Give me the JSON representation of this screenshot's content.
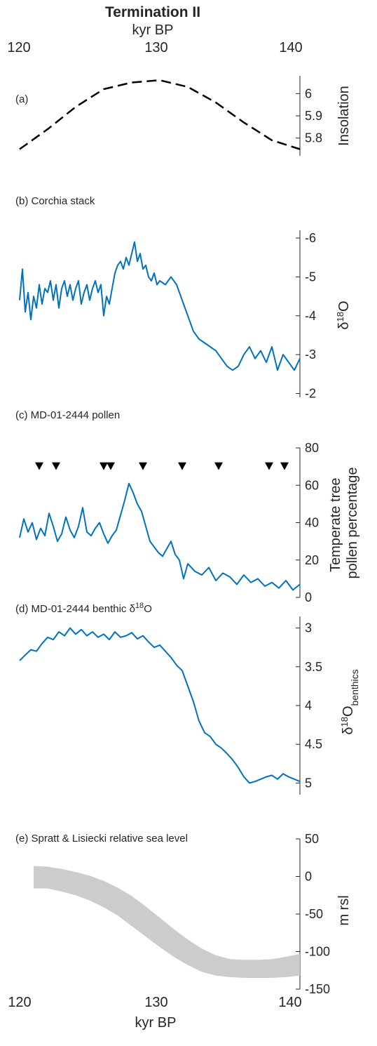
{
  "figure": {
    "title": "Termination II",
    "top_axis": {
      "label": "kyr BP",
      "ticks": [
        "120",
        "130",
        "140"
      ]
    },
    "bottom_axis": {
      "label": "kyr BP",
      "ticks": [
        "120",
        "130",
        "140"
      ]
    }
  },
  "colors": {
    "line": "#0072BD",
    "band": "#cccccc",
    "text": "#262626",
    "marker": "#000000"
  },
  "chart_data": [
    {
      "id": "a",
      "type": "line",
      "panel_label": "(a)",
      "ylabel": "Insolation",
      "line_style": "dashed",
      "y_ticks": [
        "6",
        "5.9",
        "5.8"
      ],
      "xlim": [
        120,
        140
      ],
      "ylim": [
        5.72,
        6.08
      ],
      "x": [
        120,
        122,
        124,
        126,
        128,
        130,
        132,
        134,
        136,
        138,
        140
      ],
      "y": [
        5.75,
        5.84,
        5.94,
        6.02,
        6.05,
        6.06,
        6.03,
        5.96,
        5.87,
        5.79,
        5.75
      ]
    },
    {
      "id": "b",
      "type": "line",
      "panel_label": "(b) Corchia stack",
      "ylabel": "δ18O",
      "ylabel_parts": {
        "main": "δ",
        "sup": "18",
        "rest": "O"
      },
      "y_reversed": true,
      "y_ticks": [
        "-6",
        "-5",
        "-4",
        "-3",
        "-2"
      ],
      "xlim": [
        120,
        140
      ],
      "ylim": [
        -6.2,
        -1.9
      ],
      "x": [
        120,
        120.2,
        120.4,
        120.6,
        120.8,
        121,
        121.2,
        121.4,
        121.6,
        121.8,
        122,
        122.2,
        122.4,
        122.6,
        122.8,
        123,
        123.2,
        123.4,
        123.6,
        123.8,
        124,
        124.2,
        124.4,
        124.6,
        124.8,
        125,
        125.2,
        125.4,
        125.6,
        125.8,
        126,
        126.2,
        126.4,
        126.6,
        126.8,
        127,
        127.2,
        127.4,
        127.6,
        127.8,
        128,
        128.2,
        128.4,
        128.6,
        128.8,
        129,
        129.2,
        129.4,
        129.6,
        129.8,
        130,
        130.4,
        130.8,
        131.2,
        131.6,
        132,
        132.4,
        132.8,
        133.2,
        133.6,
        134,
        134.4,
        134.8,
        135.2,
        135.6,
        136,
        136.4,
        136.8,
        137.2,
        137.6,
        138,
        138.4,
        138.8,
        139.2,
        139.6,
        140
      ],
      "y": [
        -4.4,
        -5.2,
        -4.1,
        -4.6,
        -3.9,
        -4.5,
        -4.2,
        -4.8,
        -4.3,
        -4.7,
        -4.6,
        -4.9,
        -4.4,
        -4.8,
        -4.2,
        -4.7,
        -4.9,
        -4.5,
        -4.8,
        -4.4,
        -4.7,
        -4.9,
        -4.3,
        -4.6,
        -4.8,
        -4.4,
        -4.7,
        -4.9,
        -4.6,
        -4.8,
        -4.0,
        -4.5,
        -4.3,
        -4.7,
        -5.1,
        -5.3,
        -5.4,
        -5.2,
        -5.5,
        -5.3,
        -5.6,
        -5.9,
        -5.4,
        -5.6,
        -5.2,
        -5.3,
        -5.0,
        -4.9,
        -5.1,
        -4.8,
        -4.9,
        -4.8,
        -5.0,
        -4.8,
        -4.4,
        -4.0,
        -3.6,
        -3.4,
        -3.3,
        -3.2,
        -3.1,
        -2.9,
        -2.7,
        -2.6,
        -2.7,
        -3.0,
        -3.2,
        -2.9,
        -3.1,
        -2.8,
        -3.2,
        -2.6,
        -3.0,
        -2.8,
        -2.6,
        -2.9
      ]
    },
    {
      "id": "c",
      "type": "line",
      "panel_label": "(c) MD-01-2444 pollen",
      "ylabel_lines": [
        "Temperate tree",
        "pollen percentage"
      ],
      "y_ticks": [
        "80",
        "60",
        "40",
        "20",
        "0"
      ],
      "xlim": [
        120,
        140
      ],
      "ylim": [
        0,
        80
      ],
      "x": [
        120,
        120.3,
        120.6,
        120.9,
        121.2,
        121.5,
        121.8,
        122.1,
        122.4,
        122.7,
        123,
        123.3,
        123.6,
        123.9,
        124.2,
        124.5,
        124.8,
        125.1,
        125.4,
        125.7,
        126,
        126.3,
        126.6,
        126.9,
        127.2,
        127.5,
        127.8,
        128.1,
        128.4,
        128.7,
        129,
        129.3,
        129.6,
        129.9,
        130.2,
        130.5,
        130.8,
        131.1,
        131.4,
        131.7,
        132,
        132.5,
        133,
        133.5,
        134,
        134.5,
        135,
        135.5,
        136,
        136.5,
        137,
        137.5,
        138,
        138.5,
        139,
        139.5,
        140
      ],
      "y": [
        32,
        42,
        35,
        40,
        31,
        37,
        33,
        45,
        38,
        30,
        34,
        43,
        36,
        32,
        38,
        48,
        35,
        33,
        37,
        40,
        34,
        29,
        33,
        36,
        44,
        52,
        61,
        56,
        50,
        46,
        38,
        30,
        27,
        24,
        22,
        26,
        30,
        23,
        20,
        10,
        18,
        14,
        12,
        16,
        9,
        13,
        11,
        7,
        12,
        8,
        10,
        6,
        8,
        5,
        9,
        4,
        7
      ],
      "markers_x": [
        121.4,
        122.6,
        126.0,
        126.5,
        128.8,
        131.6,
        134.2,
        137.8,
        138.9
      ],
      "marker_y": 70
    },
    {
      "id": "d",
      "type": "line",
      "panel_label": "(d) MD-01-2444 benthic δ18O",
      "panel_label_parts": {
        "main": "(d) MD-01-2444 benthic δ",
        "sup": "18",
        "rest": "O"
      },
      "ylabel": "δ18Obenthics",
      "ylabel_parts": {
        "main": "δ",
        "sup": "18",
        "rest": "O",
        "sub": "benthics"
      },
      "y_reversed": true,
      "y_ticks": [
        "3",
        "3.5",
        "4",
        "4.5",
        "5"
      ],
      "xlim": [
        120,
        140
      ],
      "ylim": [
        2.85,
        5.15
      ],
      "x": [
        120,
        120.4,
        120.8,
        121.2,
        121.6,
        122,
        122.4,
        122.8,
        123.2,
        123.6,
        124,
        124.4,
        124.8,
        125.2,
        125.6,
        126,
        126.4,
        126.8,
        127.2,
        127.6,
        128,
        128.4,
        128.8,
        129.2,
        129.6,
        130,
        130.4,
        130.8,
        131.2,
        131.6,
        132,
        132.4,
        132.8,
        133.2,
        133.6,
        134,
        134.4,
        134.8,
        135.2,
        135.6,
        136,
        136.4,
        136.8,
        137.2,
        137.6,
        138,
        138.4,
        138.8,
        139.2,
        139.6,
        140
      ],
      "y": [
        3.42,
        3.35,
        3.28,
        3.3,
        3.2,
        3.12,
        3.15,
        3.05,
        3.1,
        3.0,
        3.08,
        3.02,
        3.1,
        3.05,
        3.12,
        3.08,
        3.15,
        3.05,
        3.12,
        3.1,
        3.06,
        3.14,
        3.1,
        3.18,
        3.25,
        3.22,
        3.3,
        3.38,
        3.48,
        3.55,
        3.75,
        3.95,
        4.2,
        4.35,
        4.4,
        4.5,
        4.55,
        4.62,
        4.7,
        4.8,
        4.92,
        5.0,
        4.98,
        4.95,
        4.92,
        4.9,
        4.95,
        4.88,
        4.92,
        4.95,
        4.98
      ]
    },
    {
      "id": "e",
      "type": "area",
      "panel_label": "(e) Spratt & Lisiecki relative sea level",
      "ylabel": "m rsl",
      "y_ticks": [
        "50",
        "0",
        "-50",
        "-100",
        "-150"
      ],
      "xlim": [
        120,
        140
      ],
      "ylim": [
        -150,
        50
      ],
      "x": [
        121,
        122,
        123,
        124,
        125,
        126,
        127,
        128,
        129,
        130,
        131,
        132,
        133,
        134,
        135,
        136,
        137,
        138,
        139,
        140
      ],
      "upper": [
        14,
        13,
        10,
        6,
        1,
        -6,
        -15,
        -26,
        -40,
        -55,
        -70,
        -84,
        -96,
        -105,
        -110,
        -111,
        -111,
        -110,
        -107,
        -103
      ],
      "lower": [
        -16,
        -16,
        -20,
        -25,
        -32,
        -41,
        -52,
        -66,
        -80,
        -94,
        -107,
        -118,
        -127,
        -132,
        -134,
        -135,
        -135,
        -135,
        -134,
        -132
      ]
    }
  ]
}
